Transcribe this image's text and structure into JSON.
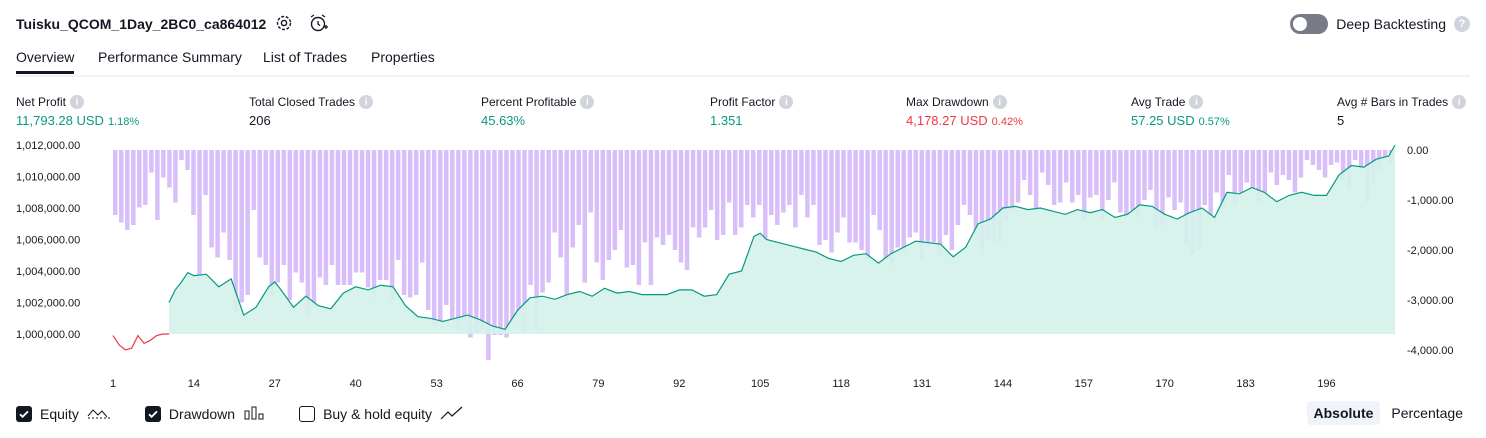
{
  "header": {
    "title": "Tuisku_QCOM_1Day_2BC0_ca864012",
    "settings_icon": "gear-icon",
    "alert_icon": "add-alert-icon",
    "deep_backtesting_label": "Deep Backtesting",
    "deep_backtesting_enabled": false
  },
  "tabs": [
    {
      "label": "Overview",
      "active": true
    },
    {
      "label": "Performance Summary",
      "active": false
    },
    {
      "label": "List of Trades",
      "active": false
    },
    {
      "label": "Properties",
      "active": false
    }
  ],
  "stats": [
    {
      "label": "Net Profit",
      "value": "11,793.28 USD",
      "pct": "1.18%"
    },
    {
      "label": "Total Closed Trades",
      "value": "206",
      "pct": ""
    },
    {
      "label": "Percent Profitable",
      "value": "45.63%",
      "pct": ""
    },
    {
      "label": "Profit Factor",
      "value": "1.351",
      "pct": ""
    },
    {
      "label": "Max Drawdown",
      "value": "4,178.27 USD",
      "pct": "0.42%"
    },
    {
      "label": "Avg Trade",
      "value": "57.25 USD",
      "pct": "0.57%"
    },
    {
      "label": "Avg # Bars in Trades",
      "value": "5",
      "pct": ""
    }
  ],
  "colors": {
    "equity_line": "#089981",
    "equity_fill": "#d4f2ea",
    "equity_negative": "#f23645",
    "drawdown_bar": "#d9bff9",
    "positive_text": "#089981",
    "negative_text": "#f23645"
  },
  "chart_data": {
    "type": "area",
    "x_ticks": [
      "1",
      "14",
      "27",
      "40",
      "53",
      "66",
      "79",
      "92",
      "105",
      "118",
      "131",
      "144",
      "157",
      "170",
      "183",
      "196"
    ],
    "left_axis": {
      "ticks": [
        "1,012,000.00",
        "1,010,000.00",
        "1,008,000.00",
        "1,006,000.00",
        "1,004,000.00",
        "1,002,000.00",
        "1,000,000.00"
      ],
      "range": [
        999000,
        1012300
      ]
    },
    "right_axis": {
      "ticks": [
        "0.00",
        "-1,000.00",
        "-2,000.00",
        "-3,000.00",
        "-4,000.00"
      ],
      "range": [
        -4200,
        0
      ]
    },
    "series": [
      {
        "name": "Equity",
        "trades_x": [
          1,
          2,
          3,
          4,
          5,
          6,
          7,
          8,
          9,
          10,
          11,
          12,
          13,
          14,
          16,
          18,
          20,
          22,
          24,
          26,
          27,
          28,
          30,
          32,
          34,
          36,
          38,
          40,
          42,
          44,
          46,
          48,
          50,
          52,
          54,
          56,
          58,
          60,
          62,
          64,
          66,
          68,
          70,
          72,
          74,
          76,
          78,
          80,
          82,
          84,
          86,
          88,
          90,
          92,
          94,
          96,
          98,
          100,
          102,
          104,
          105,
          106,
          108,
          110,
          112,
          114,
          116,
          118,
          120,
          122,
          124,
          126,
          128,
          130,
          132,
          134,
          136,
          138,
          140,
          142,
          144,
          146,
          148,
          150,
          152,
          154,
          156,
          158,
          160,
          162,
          164,
          166,
          168,
          170,
          172,
          174,
          176,
          178,
          180,
          182,
          184,
          186,
          188,
          190,
          192,
          194,
          196,
          198,
          200,
          202,
          204,
          206,
          207
        ],
        "values": [
          999900,
          999300,
          999000,
          999100,
          999900,
          999400,
          999600,
          999900,
          1001000,
          1002000,
          1002800,
          1003300,
          1003900,
          1003700,
          1003800,
          1003000,
          1003500,
          1001200,
          1001700,
          1003000,
          1003300,
          1002800,
          1001700,
          1002400,
          1001800,
          1001600,
          1002600,
          1003000,
          1002800,
          1003100,
          1003000,
          1001800,
          1001100,
          1001000,
          1000800,
          1001000,
          1001200,
          1000900,
          1000500,
          1000300,
          1001500,
          1002300,
          1002400,
          1002200,
          1002500,
          1002700,
          1002400,
          1002900,
          1002600,
          1002700,
          1002500,
          1002500,
          1002500,
          1002800,
          1002800,
          1002400,
          1002500,
          1003800,
          1004000,
          1006200,
          1006400,
          1006000,
          1005800,
          1005600,
          1005400,
          1005200,
          1004800,
          1004600,
          1005000,
          1005100,
          1004500,
          1005100,
          1005500,
          1005900,
          1005800,
          1005700,
          1004900,
          1005500,
          1007000,
          1007300,
          1008000,
          1008100,
          1007900,
          1008000,
          1007800,
          1007600,
          1007900,
          1007700,
          1007900,
          1007400,
          1007600,
          1008200,
          1008100,
          1007600,
          1007300,
          1007700,
          1008000,
          1007400,
          1009000,
          1008900,
          1009300,
          1009000,
          1008400,
          1008800,
          1009000,
          1008800,
          1008800,
          1010100,
          1010700,
          1010600,
          1011100,
          1011300,
          1012000
        ]
      },
      {
        "name": "Drawdown",
        "values": [
          -1300,
          -1450,
          -1600,
          -1500,
          -1150,
          -1100,
          -450,
          -1400,
          -550,
          -750,
          -1050,
          -200,
          -400,
          -1300,
          -2600,
          -900,
          -1950,
          -2150,
          -1650,
          -2200,
          -3250,
          -3050,
          -2900,
          -1200,
          -2150,
          -2300,
          -2900,
          -2650,
          -2300,
          -3000,
          -2450,
          -2650,
          -3300,
          -3150,
          -2550,
          -2700,
          -2300,
          -2700,
          -2700,
          -2700,
          -2450,
          -2450,
          -2750,
          -2950,
          -2600,
          -2600,
          -3000,
          -2200,
          -2900,
          -2950,
          -2900,
          -2250,
          -3200,
          -3500,
          -3450,
          -3100,
          -3400,
          -3600,
          -3500,
          -3750,
          -3650,
          -3600,
          -4200,
          -3700,
          -3700,
          -3750,
          -3450,
          -3350,
          -3650,
          -2700,
          -3600,
          -2850,
          -2650,
          -1650,
          -2150,
          -3000,
          -1950,
          -1500,
          -2650,
          -1250,
          -2250,
          -2600,
          -2200,
          -2000,
          -1600,
          -2350,
          -2300,
          -2700,
          -1850,
          -2700,
          -1750,
          -1900,
          -1700,
          -2000,
          -2250,
          -2400,
          -1550,
          -1750,
          -1550,
          -1200,
          -1800,
          -1700,
          -1050,
          -1700,
          -1550,
          -1100,
          -1350,
          -1100,
          -1800,
          -1300,
          -1500,
          -1250,
          -1100,
          -1550,
          -900,
          -1350,
          -1100,
          -1900,
          -1800,
          -2050,
          -1650,
          -1350,
          -1850,
          -1850,
          -2000,
          -2200,
          -1300,
          -1600,
          -2200,
          -2300,
          -1950,
          -2050,
          -1750,
          -1650,
          -2200,
          -1950,
          -1850,
          -2100,
          -1700,
          -2000,
          -1500,
          -1100,
          -1300,
          -1700,
          -2100,
          -1800,
          -1850,
          -1850,
          -1400,
          -1200,
          -1050,
          -600,
          -900,
          -1200,
          -450,
          -700,
          -1100,
          -1050,
          -650,
          -1050,
          -900,
          -1400,
          -950,
          -900,
          -1400,
          -1000,
          -650,
          -1250,
          -1350,
          -1200,
          -1350,
          -1000,
          -800,
          -1550,
          -1500,
          -950,
          -1200,
          -1050,
          -1900,
          -2100,
          -2000,
          -1100,
          -1300,
          -850,
          -1200,
          -500,
          -1100,
          -850,
          -650,
          -800,
          -1050,
          -850,
          -450,
          -700,
          -500,
          -600,
          -850,
          -550,
          -200,
          -300,
          -400,
          -550,
          -300,
          -250,
          -600,
          -800,
          -200,
          -400,
          -1050,
          -700,
          -400,
          -200,
          -300
        ]
      }
    ],
    "ylabel": ""
  },
  "legend": [
    {
      "label": "Equity",
      "checked": true,
      "icon": "equity-line-icon"
    },
    {
      "label": "Drawdown",
      "checked": true,
      "icon": "drawdown-bars-icon"
    },
    {
      "label": "Buy & hold equity",
      "checked": false,
      "icon": "buy-hold-line-icon"
    }
  ],
  "modes": [
    {
      "label": "Absolute",
      "active": true
    },
    {
      "label": "Percentage",
      "active": false
    }
  ]
}
